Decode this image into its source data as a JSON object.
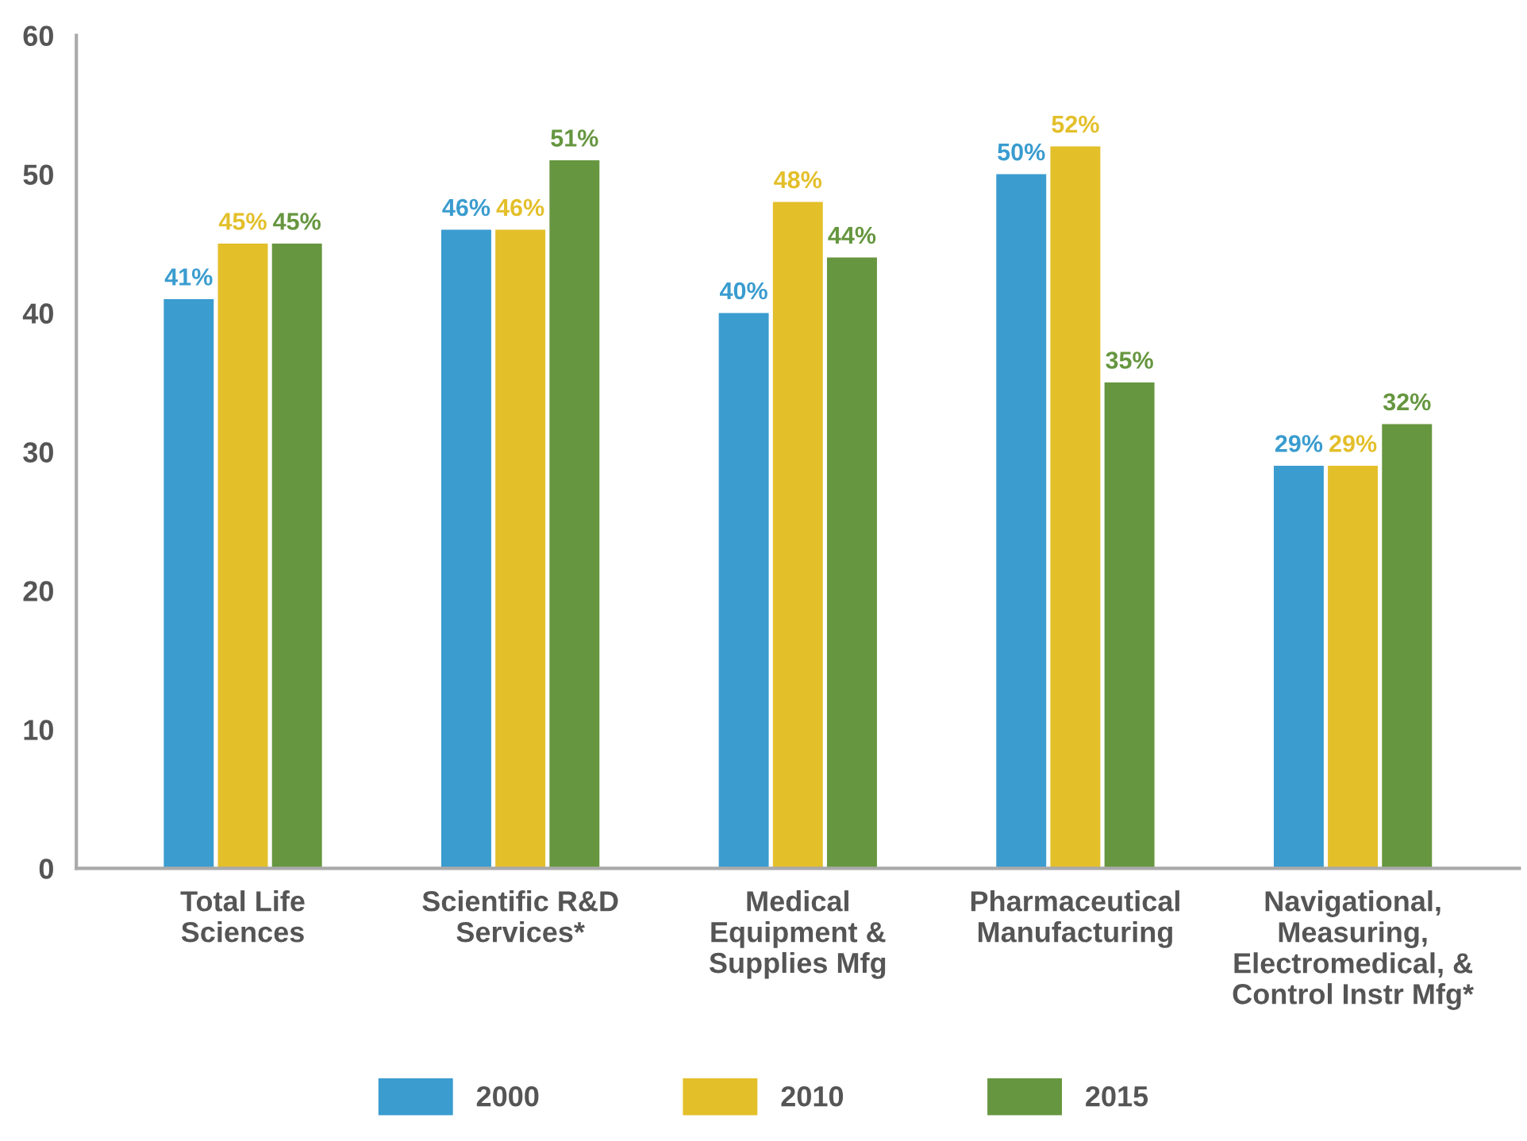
{
  "chart_data": {
    "type": "bar",
    "categories": [
      "Total Life\nSciences",
      "Scientific R&D\nServices*",
      "Medical\nEquipment &\nSupplies Mfg",
      "Pharmaceutical\nManufacturing",
      "Navigational,\nMeasuring,\nElectromedical, &\nControl Instr Mfg*"
    ],
    "series": [
      {
        "name": "2000",
        "color": "#3a9ccf",
        "values": [
          41,
          46,
          40,
          50,
          29
        ],
        "value_labels": [
          "41%",
          "46%",
          "40%",
          "50%",
          "29%"
        ]
      },
      {
        "name": "2010",
        "color": "#e3bf2a",
        "values": [
          45,
          46,
          48,
          52,
          29
        ],
        "value_labels": [
          "45%",
          "46%",
          "48%",
          "52%",
          "29%"
        ]
      },
      {
        "name": "2015",
        "color": "#66963f",
        "values": [
          45,
          51,
          44,
          35,
          32
        ],
        "value_labels": [
          "45%",
          "51%",
          "44%",
          "35%",
          "32%"
        ]
      }
    ],
    "ylim": [
      0,
      60
    ],
    "yticks": [
      0,
      10,
      20,
      30,
      40,
      50,
      60
    ],
    "grid": false,
    "legend": "bottom"
  }
}
